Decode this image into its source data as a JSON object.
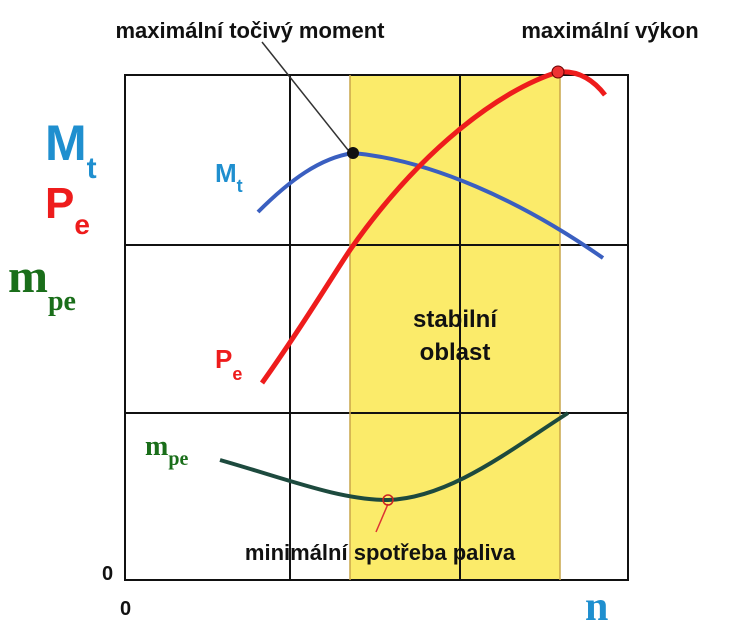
{
  "annotations": {
    "max_torque": "maximální točivý moment",
    "max_power": "maximální výkon",
    "min_consumption": "minimální spotřeba paliva"
  },
  "stable_region": [
    "stabilní",
    "oblast"
  ],
  "quantities": [
    {
      "symbol": "M",
      "sub": "t"
    },
    {
      "symbol": "P",
      "sub": "e"
    },
    {
      "symbol": "m",
      "sub": "pe"
    }
  ],
  "axes": {
    "y_origin": "0",
    "x_origin": "0",
    "x_label": "n"
  }
}
